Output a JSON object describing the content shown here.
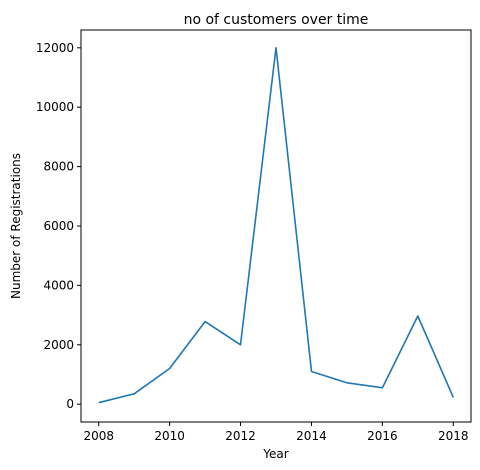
{
  "chart_data": {
    "type": "line",
    "title": "no of customers over time",
    "xlabel": "Year",
    "ylabel": "Number of Registrations",
    "x": [
      2008,
      2009,
      2010,
      2011,
      2012,
      2013,
      2014,
      2015,
      2016,
      2017,
      2018
    ],
    "series": [
      {
        "values": [
          50,
          350,
          1200,
          2780,
          2000,
          12000,
          1100,
          720,
          550,
          2970,
          230
        ],
        "color": "#1f77b4"
      }
    ],
    "xlim": [
      2007.5,
      2018.5
    ],
    "ylim": [
      -600,
      12600
    ],
    "xticks": [
      2008,
      2010,
      2012,
      2014,
      2016,
      2018
    ],
    "yticks": [
      0,
      2000,
      4000,
      6000,
      8000,
      10000,
      12000
    ],
    "grid": false,
    "legend": "none"
  }
}
